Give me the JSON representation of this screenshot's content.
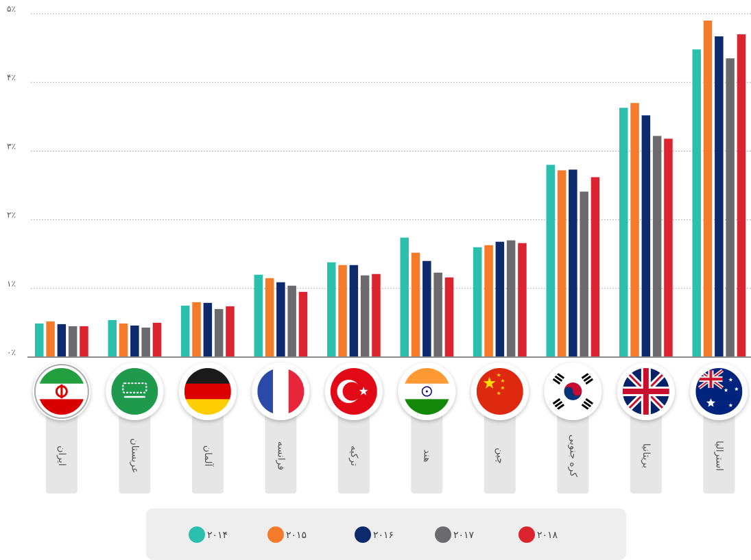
{
  "chart_data": {
    "type": "bar",
    "title": "",
    "xlabel": "",
    "ylabel": "",
    "ylim": [
      0,
      5
    ],
    "y_ticks": [
      {
        "value": 0,
        "label": "۰٪"
      },
      {
        "value": 1,
        "label": "۱٪"
      },
      {
        "value": 2,
        "label": "۲٪"
      },
      {
        "value": 3,
        "label": "۳٪"
      },
      {
        "value": 4,
        "label": "۴٪"
      },
      {
        "value": 5,
        "label": "۵٪"
      }
    ],
    "grid": "horizontal-dotted",
    "legend_position": "bottom",
    "categories": [
      "ایران",
      "عربستان",
      "آلمان",
      "فرانسه",
      "ترکیه",
      "هند",
      "چین",
      "کره جنوبی",
      "بریتانیا",
      "استرالیا"
    ],
    "category_icons": [
      "iran-flag-icon",
      "saudi-arabia-flag-icon",
      "germany-flag-icon",
      "france-flag-icon",
      "turkey-flag-icon",
      "india-flag-icon",
      "china-flag-icon",
      "south-korea-flag-icon",
      "uk-flag-icon",
      "australia-flag-icon"
    ],
    "series": [
      {
        "name": "۲۰۱۴",
        "color": "#2bbfad",
        "values": [
          0.49,
          0.54,
          0.75,
          1.2,
          1.38,
          1.74,
          1.6,
          2.8,
          3.63,
          4.48
        ]
      },
      {
        "name": "۲۰۱۵",
        "color": "#f47b2a",
        "values": [
          0.52,
          0.49,
          0.8,
          1.15,
          1.34,
          1.52,
          1.63,
          2.72,
          3.7,
          4.9
        ]
      },
      {
        "name": "۲۰۱۶",
        "color": "#0d2a6d",
        "values": [
          0.48,
          0.46,
          0.79,
          1.09,
          1.34,
          1.4,
          1.68,
          2.73,
          3.52,
          4.67
        ]
      },
      {
        "name": "۲۰۱۷",
        "color": "#6b6b6d",
        "values": [
          0.45,
          0.43,
          0.7,
          1.04,
          1.19,
          1.23,
          1.7,
          2.41,
          3.22,
          4.35
        ]
      },
      {
        "name": "۲۰۱۸",
        "color": "#dc2430",
        "values": [
          0.45,
          0.5,
          0.74,
          0.95,
          1.21,
          1.16,
          1.66,
          2.62,
          3.18,
          4.7
        ]
      }
    ]
  }
}
